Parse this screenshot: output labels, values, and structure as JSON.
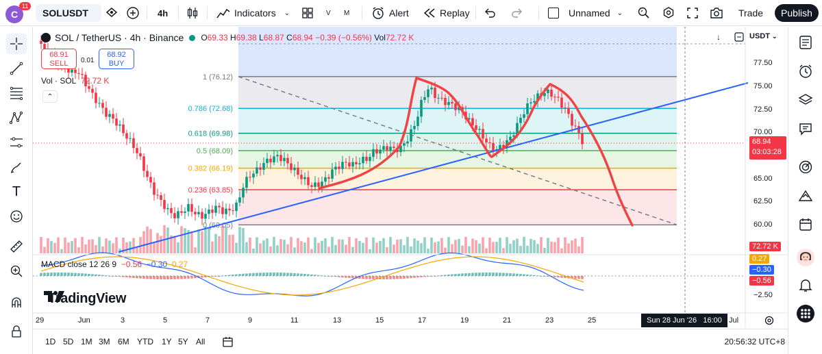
{
  "topbar": {
    "avatar_letter": "C",
    "notif_count": "11",
    "symbol": "SOLUSDT",
    "interval": "4h",
    "indicators_label": "Indicators",
    "v_label": "V",
    "m_label": "M",
    "alert_label": "Alert",
    "replay_label": "Replay",
    "layout_name": "Unnamed",
    "trade_label": "Trade",
    "publish_label": "Publish"
  },
  "legend": {
    "title": "SOL / TetherUS · 4h · Binance",
    "o_label": "O",
    "o_val": "69.33",
    "h_label": "H",
    "h_val": "69.38",
    "l_label": "L",
    "l_val": "68.87",
    "c_label": "C",
    "c_val": "68.94",
    "change": "−0.39 (−0.56%)",
    "vol_label": "Vol",
    "vol_val": "72.72 K"
  },
  "trade": {
    "sell_price": "68.91",
    "sell_label": "SELL",
    "spread": "0.01",
    "buy_price": "68.92",
    "buy_label": "BUY"
  },
  "volume_legend": {
    "label": "Vol · SOL",
    "value": "72.72 K"
  },
  "macd_legend": {
    "label": "MACD close 12 26 9",
    "hist": "−0.56",
    "macd": "−0.30",
    "signal": "0.27"
  },
  "currency": "USDT",
  "brand": "TradingView",
  "fib_levels": [
    {
      "label": "1 (76.12)",
      "price": 76.12,
      "color": "#787b86"
    },
    {
      "label": "0.786 (72.68)",
      "price": 72.68,
      "color": "#00bcd4"
    },
    {
      "label": "0.618 (69.98)",
      "price": 69.98,
      "color": "#089981"
    },
    {
      "label": "0.5 (68.09)",
      "price": 68.09,
      "color": "#4caf50"
    },
    {
      "label": "0.382 (66.19)",
      "price": 66.19,
      "color": "#f7a600"
    },
    {
      "label": "0.236 (63.85)",
      "price": 63.85,
      "color": "#f23645"
    },
    {
      "label": "0 (60.05)",
      "price": 60.05,
      "color": "#787b86"
    }
  ],
  "y_axis": {
    "ticks": [
      "77.50",
      "75.00",
      "72.50",
      "70.00",
      "67.50",
      "65.00",
      "62.50",
      "60.00"
    ],
    "macd_tick": "−2.50",
    "current_price": "68.94",
    "countdown": "03:03:28",
    "volume_tag": "72.72 K",
    "macd_tags": [
      "0.27",
      "−0.30",
      "−0.56"
    ]
  },
  "x_axis": {
    "ticks": [
      "29",
      "Jun",
      "3",
      "5",
      "7",
      "9",
      "11",
      "13",
      "15",
      "17",
      "19",
      "21",
      "23",
      "25",
      "Jul"
    ],
    "crosshair_date": "Sun 28 Jun '26",
    "crosshair_time": "16:00"
  },
  "bottombar": {
    "ranges": [
      "1D",
      "5D",
      "1M",
      "3M",
      "6M",
      "YTD",
      "1Y",
      "5Y",
      "All"
    ],
    "clock": "20:56:32 UTC+8"
  },
  "colors": {
    "up": "#089981",
    "down": "#f23645",
    "trendline": "#2962ff",
    "drawing": "#ef4444"
  }
}
